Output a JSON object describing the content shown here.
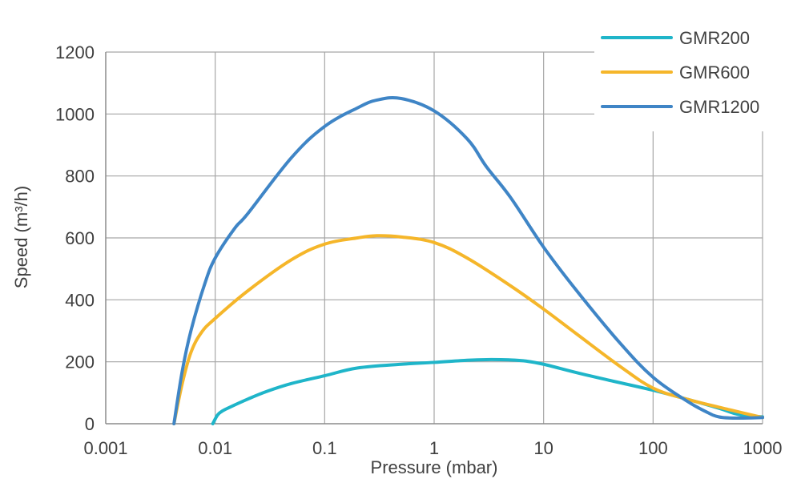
{
  "chart_data": {
    "type": "line",
    "xscale": "log",
    "xlim": [
      0.001,
      1000
    ],
    "ylim": [
      0,
      1200
    ],
    "xticks": [
      0.001,
      0.01,
      0.1,
      1,
      10,
      100,
      1000
    ],
    "xtick_labels": [
      "0.001",
      "0.01",
      "0.1",
      "1",
      "10",
      "100",
      "1000"
    ],
    "yticks": [
      0,
      200,
      400,
      600,
      800,
      1000,
      1200
    ],
    "ytick_labels": [
      "0",
      "200",
      "400",
      "600",
      "800",
      "1000",
      "1200"
    ],
    "xlabel": "Pressure (mbar)",
    "ylabel": "Speed (m³/h)",
    "grid": true,
    "legend_position": "top-right",
    "series": [
      {
        "name": "GMR200",
        "color": "#1fb5c9",
        "points": [
          [
            0.0095,
            0
          ],
          [
            0.0105,
            28
          ],
          [
            0.0115,
            40
          ],
          [
            0.013,
            50
          ],
          [
            0.02,
            80
          ],
          [
            0.03,
            105
          ],
          [
            0.05,
            130
          ],
          [
            0.1,
            155
          ],
          [
            0.2,
            180
          ],
          [
            0.5,
            192
          ],
          [
            1,
            198
          ],
          [
            2,
            205
          ],
          [
            3,
            207
          ],
          [
            5,
            206
          ],
          [
            7,
            202
          ],
          [
            10,
            192
          ],
          [
            20,
            165
          ],
          [
            40,
            140
          ],
          [
            100,
            108
          ],
          [
            200,
            80
          ],
          [
            400,
            50
          ],
          [
            600,
            30
          ],
          [
            1000,
            22
          ]
        ]
      },
      {
        "name": "GMR600",
        "color": "#f5b62a",
        "points": [
          [
            0.0042,
            0
          ],
          [
            0.005,
            130
          ],
          [
            0.006,
            230
          ],
          [
            0.0075,
            295
          ],
          [
            0.01,
            340
          ],
          [
            0.02,
            430
          ],
          [
            0.05,
            530
          ],
          [
            0.1,
            580
          ],
          [
            0.2,
            600
          ],
          [
            0.3,
            607
          ],
          [
            0.5,
            603
          ],
          [
            1,
            585
          ],
          [
            2,
            535
          ],
          [
            5,
            445
          ],
          [
            10,
            370
          ],
          [
            20,
            290
          ],
          [
            50,
            185
          ],
          [
            100,
            115
          ],
          [
            200,
            80
          ],
          [
            500,
            45
          ],
          [
            1000,
            20
          ]
        ]
      },
      {
        "name": "GMR1200",
        "color": "#3f85c6",
        "points": [
          [
            0.0042,
            0
          ],
          [
            0.005,
            170
          ],
          [
            0.006,
            300
          ],
          [
            0.008,
            450
          ],
          [
            0.01,
            535
          ],
          [
            0.015,
            630
          ],
          [
            0.02,
            680
          ],
          [
            0.05,
            860
          ],
          [
            0.1,
            960
          ],
          [
            0.2,
            1020
          ],
          [
            0.3,
            1045
          ],
          [
            0.5,
            1050
          ],
          [
            1,
            1010
          ],
          [
            2,
            920
          ],
          [
            3,
            830
          ],
          [
            5,
            730
          ],
          [
            10,
            570
          ],
          [
            20,
            430
          ],
          [
            50,
            260
          ],
          [
            100,
            150
          ],
          [
            200,
            75
          ],
          [
            300,
            40
          ],
          [
            400,
            22
          ],
          [
            600,
            18
          ],
          [
            1000,
            20
          ]
        ]
      }
    ]
  }
}
